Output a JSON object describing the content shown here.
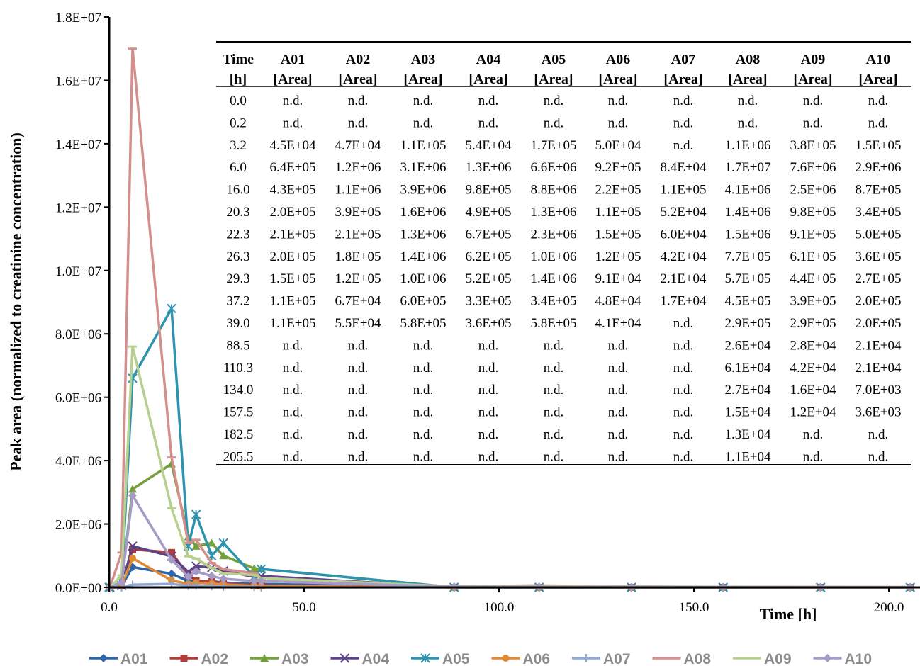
{
  "chart_data": {
    "type": "line",
    "title": "",
    "xlabel": "Time [h]",
    "ylabel": "Peak area (normalized to creatinine concentration)",
    "xlim": [
      0,
      208
    ],
    "ylim": [
      0,
      18000000
    ],
    "x_ticks": [
      "0.0",
      "50.0",
      "100.0",
      "150.0",
      "200.0"
    ],
    "y_ticks": [
      "0.0E+00",
      "2.0E+06",
      "4.0E+06",
      "6.0E+06",
      "8.0E+06",
      "1.0E+07",
      "1.2E+07",
      "1.4E+07",
      "1.6E+07",
      "1.8E+07"
    ],
    "grid": false,
    "legend_position": "bottom",
    "x": [
      0.0,
      0.2,
      3.2,
      6.0,
      16.0,
      20.3,
      22.3,
      26.3,
      29.3,
      37.2,
      39.0,
      88.5,
      110.3,
      134.0,
      157.5,
      182.5,
      205.5
    ],
    "series": [
      {
        "name": "A01",
        "color": "#2e64a8",
        "marker": "diamond",
        "values": [
          0,
          0,
          45000,
          640000,
          430000,
          200000,
          210000,
          200000,
          150000,
          110000,
          110000,
          0,
          0,
          0,
          0,
          0,
          0
        ]
      },
      {
        "name": "A02",
        "color": "#b13d3a",
        "marker": "square",
        "values": [
          0,
          0,
          47000,
          1200000,
          1100000,
          390000,
          210000,
          180000,
          120000,
          67000,
          55000,
          0,
          0,
          0,
          0,
          0,
          0
        ]
      },
      {
        "name": "A03",
        "color": "#74a03c",
        "marker": "triangle",
        "values": [
          0,
          0,
          110000,
          3100000,
          3900000,
          1600000,
          1300000,
          1400000,
          1000000,
          600000,
          580000,
          0,
          0,
          0,
          0,
          0,
          0
        ]
      },
      {
        "name": "A04",
        "color": "#5d4387",
        "marker": "x",
        "values": [
          0,
          0,
          54000,
          1300000,
          980000,
          490000,
          670000,
          620000,
          520000,
          330000,
          360000,
          0,
          0,
          0,
          0,
          0,
          0
        ]
      },
      {
        "name": "A05",
        "color": "#2f93b0",
        "marker": "star",
        "values": [
          0,
          0,
          170000,
          6600000,
          8800000,
          1300000,
          2300000,
          1000000,
          1400000,
          340000,
          580000,
          0,
          0,
          0,
          0,
          0,
          0
        ]
      },
      {
        "name": "A06",
        "color": "#e08a33",
        "marker": "circle",
        "values": [
          0,
          0,
          50000,
          920000,
          220000,
          110000,
          150000,
          120000,
          91000,
          48000,
          41000,
          0,
          0,
          0,
          0,
          0,
          0
        ]
      },
      {
        "name": "A07",
        "color": "#8ea8d3",
        "marker": "plus",
        "values": [
          0,
          0,
          0,
          84000,
          110000,
          52000,
          60000,
          42000,
          21000,
          17000,
          0,
          0,
          0,
          0,
          0,
          0,
          0
        ]
      },
      {
        "name": "A08",
        "color": "#d48f8d",
        "marker": "dash",
        "values": [
          0,
          0,
          1100000,
          17000000,
          4100000,
          1400000,
          1500000,
          770000,
          570000,
          450000,
          290000,
          26000,
          61000,
          27000,
          15000,
          13000,
          11000
        ]
      },
      {
        "name": "A09",
        "color": "#b8d08e",
        "marker": "dash",
        "values": [
          0,
          0,
          380000,
          7600000,
          2500000,
          980000,
          910000,
          610000,
          440000,
          390000,
          290000,
          28000,
          42000,
          16000,
          12000,
          0,
          0
        ]
      },
      {
        "name": "A10",
        "color": "#a59bc6",
        "marker": "diamond",
        "values": [
          0,
          0,
          150000,
          2900000,
          870000,
          340000,
          500000,
          360000,
          270000,
          200000,
          200000,
          21000,
          21000,
          7000,
          3600,
          0,
          0
        ]
      }
    ],
    "table": {
      "headers": [
        [
          "Time",
          "[h]"
        ],
        [
          "A01",
          "[Area]"
        ],
        [
          "A02",
          "[Area]"
        ],
        [
          "A03",
          "[Area]"
        ],
        [
          "A04",
          "[Area]"
        ],
        [
          "A05",
          "[Area]"
        ],
        [
          "A06",
          "[Area]"
        ],
        [
          "A07",
          "[Area]"
        ],
        [
          "A08",
          "[Area]"
        ],
        [
          "A09",
          "[Area]"
        ],
        [
          "A10",
          "[Area]"
        ]
      ],
      "rows": [
        [
          "0.0",
          "n.d.",
          "n.d.",
          "n.d.",
          "n.d.",
          "n.d.",
          "n.d.",
          "n.d.",
          "n.d.",
          "n.d.",
          "n.d."
        ],
        [
          "0.2",
          "n.d.",
          "n.d.",
          "n.d.",
          "n.d.",
          "n.d.",
          "n.d.",
          "n.d.",
          "n.d.",
          "n.d.",
          "n.d."
        ],
        [
          "3.2",
          "4.5E+04",
          "4.7E+04",
          "1.1E+05",
          "5.4E+04",
          "1.7E+05",
          "5.0E+04",
          "n.d.",
          "1.1E+06",
          "3.8E+05",
          "1.5E+05"
        ],
        [
          "6.0",
          "6.4E+05",
          "1.2E+06",
          "3.1E+06",
          "1.3E+06",
          "6.6E+06",
          "9.2E+05",
          "8.4E+04",
          "1.7E+07",
          "7.6E+06",
          "2.9E+06"
        ],
        [
          "16.0",
          "4.3E+05",
          "1.1E+06",
          "3.9E+06",
          "9.8E+05",
          "8.8E+06",
          "2.2E+05",
          "1.1E+05",
          "4.1E+06",
          "2.5E+06",
          "8.7E+05"
        ],
        [
          "20.3",
          "2.0E+05",
          "3.9E+05",
          "1.6E+06",
          "4.9E+05",
          "1.3E+06",
          "1.1E+05",
          "5.2E+04",
          "1.4E+06",
          "9.8E+05",
          "3.4E+05"
        ],
        [
          "22.3",
          "2.1E+05",
          "2.1E+05",
          "1.3E+06",
          "6.7E+05",
          "2.3E+06",
          "1.5E+05",
          "6.0E+04",
          "1.5E+06",
          "9.1E+05",
          "5.0E+05"
        ],
        [
          "26.3",
          "2.0E+05",
          "1.8E+05",
          "1.4E+06",
          "6.2E+05",
          "1.0E+06",
          "1.2E+05",
          "4.2E+04",
          "7.7E+05",
          "6.1E+05",
          "3.6E+05"
        ],
        [
          "29.3",
          "1.5E+05",
          "1.2E+05",
          "1.0E+06",
          "5.2E+05",
          "1.4E+06",
          "9.1E+04",
          "2.1E+04",
          "5.7E+05",
          "4.4E+05",
          "2.7E+05"
        ],
        [
          "37.2",
          "1.1E+05",
          "6.7E+04",
          "6.0E+05",
          "3.3E+05",
          "3.4E+05",
          "4.8E+04",
          "1.7E+04",
          "4.5E+05",
          "3.9E+05",
          "2.0E+05"
        ],
        [
          "39.0",
          "1.1E+05",
          "5.5E+04",
          "5.8E+05",
          "3.6E+05",
          "5.8E+05",
          "4.1E+04",
          "n.d.",
          "2.9E+05",
          "2.9E+05",
          "2.0E+05"
        ],
        [
          "88.5",
          "n.d.",
          "n.d.",
          "n.d.",
          "n.d.",
          "n.d.",
          "n.d.",
          "n.d.",
          "2.6E+04",
          "2.8E+04",
          "2.1E+04"
        ],
        [
          "110.3",
          "n.d.",
          "n.d.",
          "n.d.",
          "n.d.",
          "n.d.",
          "n.d.",
          "n.d.",
          "6.1E+04",
          "4.2E+04",
          "2.1E+04"
        ],
        [
          "134.0",
          "n.d.",
          "n.d.",
          "n.d.",
          "n.d.",
          "n.d.",
          "n.d.",
          "n.d.",
          "2.7E+04",
          "1.6E+04",
          "7.0E+03"
        ],
        [
          "157.5",
          "n.d.",
          "n.d.",
          "n.d.",
          "n.d.",
          "n.d.",
          "n.d.",
          "n.d.",
          "1.5E+04",
          "1.2E+04",
          "3.6E+03"
        ],
        [
          "182.5",
          "n.d.",
          "n.d.",
          "n.d.",
          "n.d.",
          "n.d.",
          "n.d.",
          "n.d.",
          "1.3E+04",
          "n.d.",
          "n.d."
        ],
        [
          "205.5",
          "n.d.",
          "n.d.",
          "n.d.",
          "n.d.",
          "n.d.",
          "n.d.",
          "n.d.",
          "1.1E+04",
          "n.d.",
          "n.d."
        ]
      ]
    }
  }
}
